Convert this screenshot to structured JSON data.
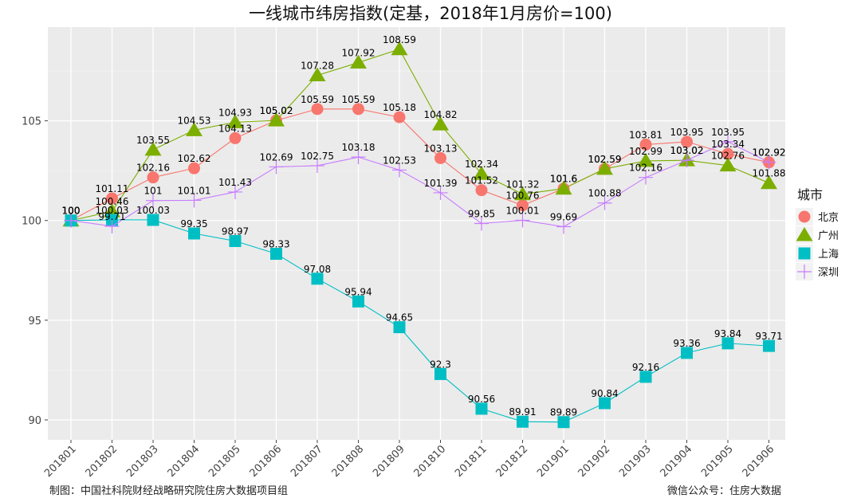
{
  "chart_data": {
    "type": "line",
    "title": "一线城市纬房指数(定基，2018年1月房价=100)",
    "x": [
      "201801",
      "201802",
      "201803",
      "201804",
      "201805",
      "201806",
      "201807",
      "201808",
      "201809",
      "201810",
      "201811",
      "201812",
      "201901",
      "201902",
      "201903",
      "201904",
      "201905",
      "201906"
    ],
    "y_ticks": [
      90,
      95,
      100,
      105
    ],
    "ylim": [
      89,
      109.7
    ],
    "grid": true,
    "legend": {
      "title": "城市",
      "position": "right"
    },
    "series": [
      {
        "name": "北京",
        "color": "#F8766D",
        "marker": "circle",
        "values": [
          100,
          101.11,
          102.16,
          102.62,
          104.13,
          105.02,
          105.59,
          105.59,
          105.18,
          103.13,
          101.52,
          100.76,
          101.6,
          102.59,
          103.81,
          103.95,
          103.34,
          102.92
        ]
      },
      {
        "name": "广州",
        "color": "#7CAE00",
        "marker": "triangle",
        "values": [
          100,
          100.46,
          103.55,
          104.53,
          104.93,
          105.02,
          107.28,
          107.92,
          108.59,
          104.82,
          102.34,
          101.32,
          101.6,
          102.59,
          102.99,
          103.02,
          102.76,
          101.88
        ]
      },
      {
        "name": "上海",
        "color": "#00BFC4",
        "marker": "square",
        "values": [
          100,
          100.03,
          100.03,
          99.35,
          98.97,
          98.33,
          97.08,
          95.94,
          94.65,
          92.3,
          90.56,
          89.91,
          89.89,
          90.84,
          92.16,
          93.36,
          93.84,
          93.71
        ]
      },
      {
        "name": "深圳",
        "color": "#C77CFF",
        "marker": "cross",
        "values": [
          100,
          99.71,
          101,
          101.01,
          101.43,
          102.69,
          102.75,
          103.18,
          102.53,
          101.39,
          99.85,
          100.01,
          99.69,
          100.88,
          102.16,
          103.02,
          103.95,
          102.92
        ]
      }
    ]
  },
  "footer": {
    "left": "制图：中国社科院财经战略研究院住房大数据项目组",
    "right": "微信公众号：住房大数据"
  }
}
